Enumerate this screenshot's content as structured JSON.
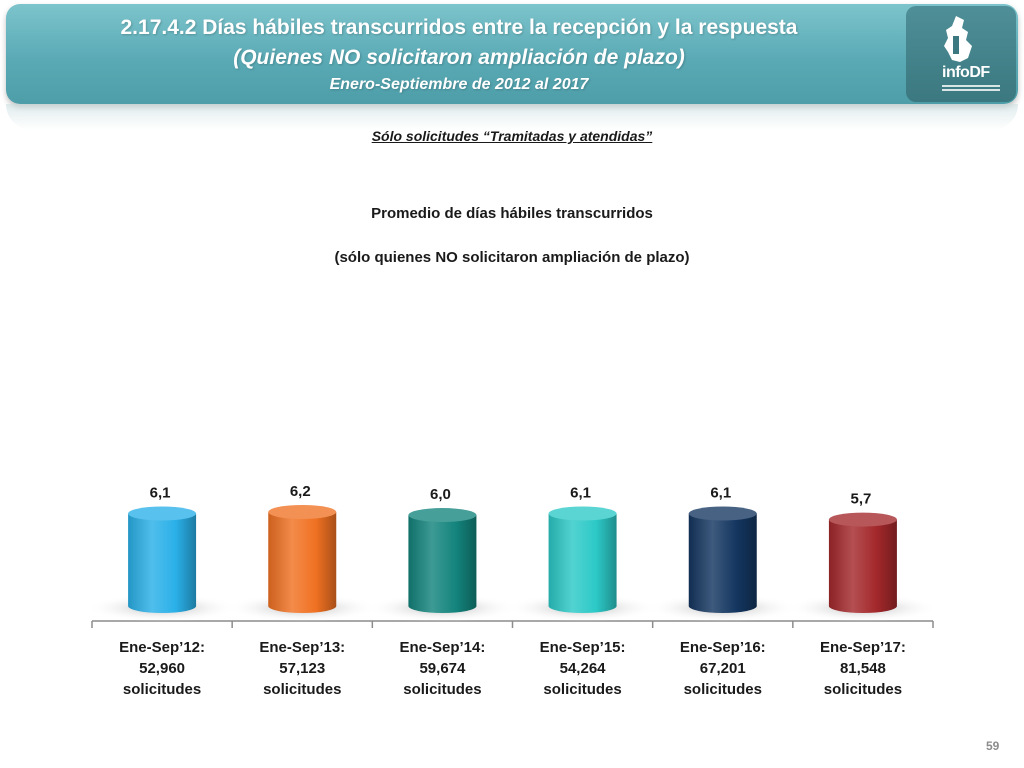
{
  "header": {
    "title": "2.17.4.2 Días hábiles transcurridos entre la recepción y la respuesta",
    "subtitle": "(Quienes NO solicitaron ampliación de plazo)",
    "period": "Enero-Septiembre de 2012 al 2017",
    "logo_text": "infoDF",
    "logo_icon": "mexico-city-map-icon"
  },
  "note": "Sólo solicitudes “Tramitadas y atendidas”",
  "page_number": "59",
  "chart_data": {
    "type": "bar",
    "title": "Promedio de días hábiles transcurridos",
    "subtitle": "(sólo quienes NO solicitaron ampliación de plazo)",
    "categories": [
      [
        "Ene-Sep’12:",
        "52,960",
        "solicitudes"
      ],
      [
        "Ene-Sep’13:",
        "57,123",
        "solicitudes"
      ],
      [
        "Ene-Sep’14:",
        "59,674",
        "solicitudes"
      ],
      [
        "Ene-Sep’15:",
        "54,264",
        "solicitudes"
      ],
      [
        "Ene-Sep’16:",
        "67,201",
        "solicitudes"
      ],
      [
        "Ene-Sep’17:",
        "81,548",
        "solicitudes"
      ]
    ],
    "values": [
      6.1,
      6.2,
      6.0,
      6.1,
      6.1,
      5.7
    ],
    "value_labels": [
      "6,1",
      "6,2",
      "6,0",
      "6,1",
      "6,1",
      "5,7"
    ],
    "colors": [
      "#2ab0e8",
      "#f07122",
      "#13847c",
      "#2cc9c7",
      "#143660",
      "#a3282b"
    ],
    "ylim": [
      0,
      6.2
    ],
    "grid": false,
    "legend": "none"
  }
}
